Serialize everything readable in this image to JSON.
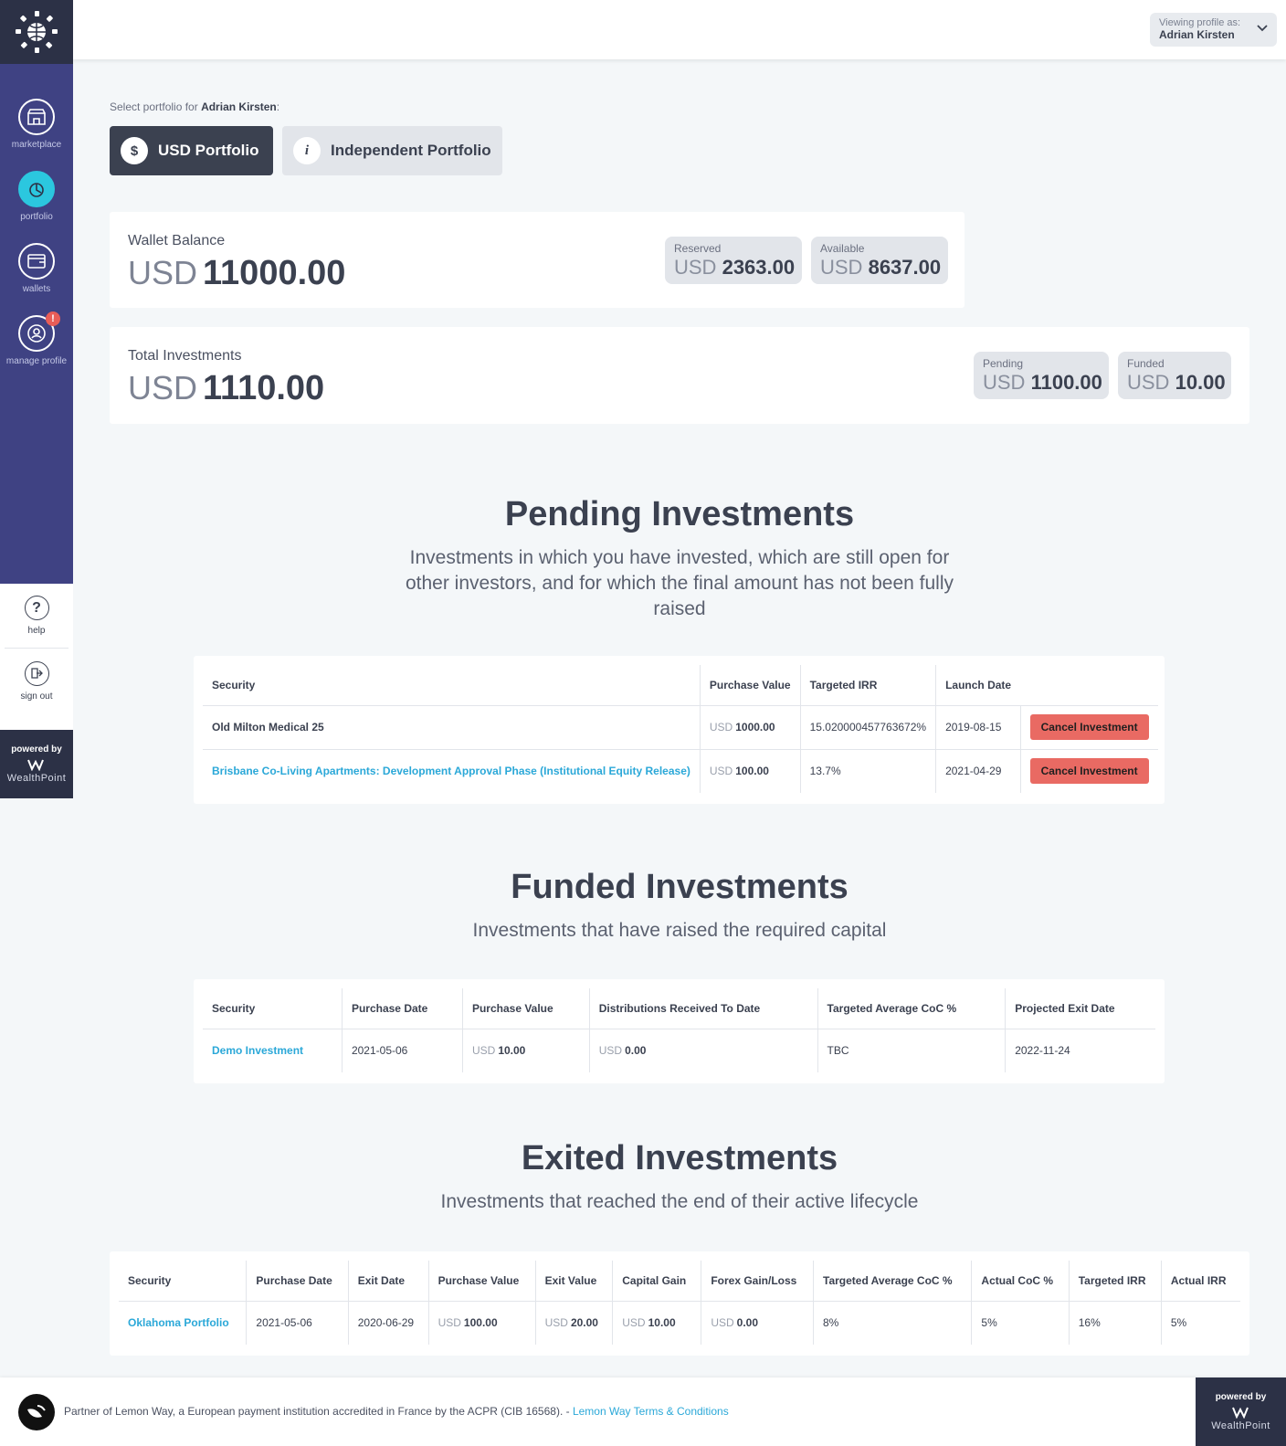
{
  "sidebar": {
    "nav": [
      {
        "label": "marketplace",
        "icon": "marketplace-icon"
      },
      {
        "label": "portfolio",
        "icon": "portfolio-icon",
        "active": true
      },
      {
        "label": "wallets",
        "icon": "wallet-icon"
      },
      {
        "label": "manage profile",
        "icon": "profile-icon",
        "badge": "!"
      }
    ],
    "help_label": "help",
    "signout_label": "sign out",
    "powered_label": "powered by",
    "powered_brand": "WealthPoint"
  },
  "header": {
    "viewing_label": "Viewing profile as:",
    "profile_name": "Adrian Kirsten"
  },
  "portfolio_select": {
    "label_prefix": "Select portfolio for ",
    "user": "Adrian Kirsten",
    "label_suffix": ":",
    "usd": {
      "icon_glyph": "$",
      "label": "USD Portfolio"
    },
    "independent": {
      "icon_glyph": "i",
      "label": "Independent Portfolio"
    }
  },
  "wallet": {
    "title": "Wallet Balance",
    "currency": "USD",
    "amount": "11000.00",
    "reserved_label": "Reserved",
    "reserved_amount": "2363.00",
    "available_label": "Available",
    "available_amount": "8637.00"
  },
  "total": {
    "title": "Total Investments",
    "currency": "USD",
    "amount": "1110.00",
    "pending_label": "Pending",
    "pending_amount": "1100.00",
    "funded_label": "Funded",
    "funded_amount": "10.00"
  },
  "pending": {
    "title": "Pending Investments",
    "subtitle_line1": "Investments in which you have invested, which are still open for",
    "subtitle_line2": "other investors, and for which the final amount has not been fully",
    "subtitle_line3": "raised",
    "headers": [
      "Security",
      "Purchase Value",
      "Targeted IRR",
      "Launch Date"
    ],
    "rows": [
      {
        "security": "Old Milton Medical 25",
        "cur": "USD",
        "value": "1000.00",
        "irr": "15.020000457763672%",
        "launch": "2019-08-15",
        "action": "Cancel Investment"
      },
      {
        "security": "Brisbane Co-Living Apartments: Development Approval Phase (Institutional Equity Release)",
        "cur": "USD",
        "value": "100.00",
        "irr": "13.7%",
        "launch": "2021-04-29",
        "action": "Cancel Investment"
      }
    ]
  },
  "funded": {
    "title": "Funded Investments",
    "subtitle": "Investments that have raised the required capital",
    "headers": [
      "Security",
      "Purchase Date",
      "Purchase Value",
      "Distributions Received To Date",
      "Targeted Average CoC %",
      "Projected Exit Date"
    ],
    "rows": [
      {
        "security": "Demo Investment",
        "date": "2021-05-06",
        "cur": "USD",
        "value": "10.00",
        "dist_cur": "USD",
        "dist": "0.00",
        "coc": "TBC",
        "exit": "2022-11-24"
      }
    ]
  },
  "exited": {
    "title": "Exited Investments",
    "subtitle": "Investments that reached the end of their active lifecycle",
    "headers": [
      "Security",
      "Purchase Date",
      "Exit Date",
      "Purchase Value",
      "Exit Value",
      "Capital Gain",
      "Forex Gain/Loss",
      "Targeted Average CoC %",
      "Actual CoC %",
      "Targeted IRR",
      "Actual IRR"
    ],
    "rows": [
      {
        "security": "Oklahoma Portfolio",
        "purchase_date": "2021-05-06",
        "exit_date": "2020-06-29",
        "pv_cur": "USD",
        "pv": "100.00",
        "ev_cur": "USD",
        "ev": "20.00",
        "cg_cur": "USD",
        "cg": "10.00",
        "fx_cur": "USD",
        "fx": "0.00",
        "tcoc": "8%",
        "acoc": "5%",
        "tirr": "16%",
        "airr": "5%"
      }
    ]
  },
  "footer": {
    "text": "Partner of Lemon Way, a European payment institution accredited in France by the ACPR (CIB 16568). - ",
    "link": "Lemon Way Terms & Conditions",
    "powered_label": "powered by",
    "powered_brand": "WealthPoint"
  },
  "colors": {
    "sidebar": "#3f4283",
    "sidebar_dark": "#2c3146",
    "active": "#2bc7df",
    "link": "#2ba8d8",
    "cancel": "#e96a63"
  }
}
